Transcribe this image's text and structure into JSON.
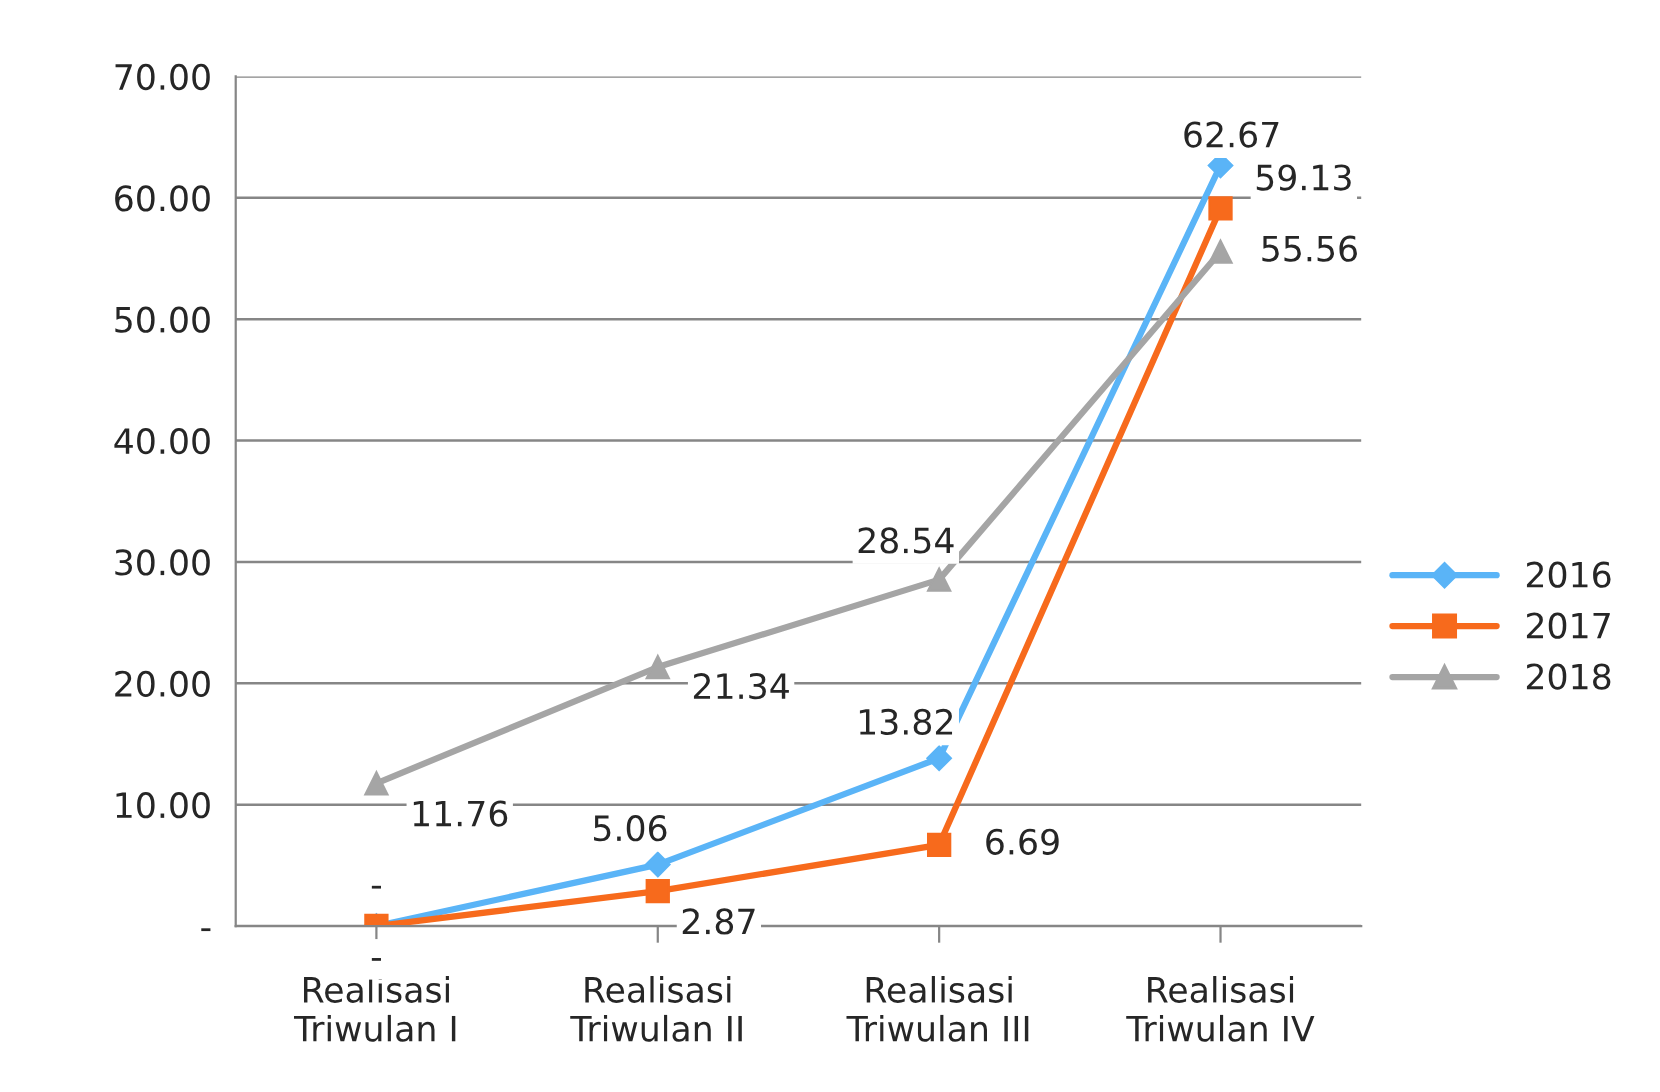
{
  "chart_data": {
    "type": "line",
    "categories": [
      "Realisasi\nTriwulan I",
      "Realisasi\nTriwulan II",
      "Realisasi\nTriwulan III",
      "Realisasi\nTriwulan IV"
    ],
    "series": [
      {
        "name": "2016",
        "color": "#5ab4f7",
        "marker": "diamond",
        "values": [
          0,
          5.06,
          13.82,
          62.67
        ],
        "value_labels": [
          "-",
          "5.06",
          "13.82",
          "62.67"
        ]
      },
      {
        "name": "2017",
        "color": "#f76a1c",
        "marker": "square",
        "values": [
          0,
          2.87,
          6.69,
          59.13
        ],
        "value_labels": [
          "-",
          "2.87",
          "6.69",
          "59.13"
        ]
      },
      {
        "name": "2018",
        "color": "#a5a5a5",
        "marker": "triangle",
        "values": [
          11.76,
          21.34,
          28.54,
          55.56
        ],
        "value_labels": [
          "11.76",
          "21.34",
          "28.54",
          "55.56"
        ]
      }
    ],
    "ylim": [
      0,
      70
    ],
    "yticks": [
      {
        "value": 0,
        "label": "-"
      },
      {
        "value": 10,
        "label": "10.00"
      },
      {
        "value": 20,
        "label": "20.00"
      },
      {
        "value": 30,
        "label": "30.00"
      },
      {
        "value": 40,
        "label": "40.00"
      },
      {
        "value": 50,
        "label": "50.00"
      },
      {
        "value": 60,
        "label": "60.00"
      },
      {
        "value": 70,
        "label": "70.00"
      }
    ],
    "grid": "y",
    "legend": "right",
    "line_style": "solid"
  }
}
